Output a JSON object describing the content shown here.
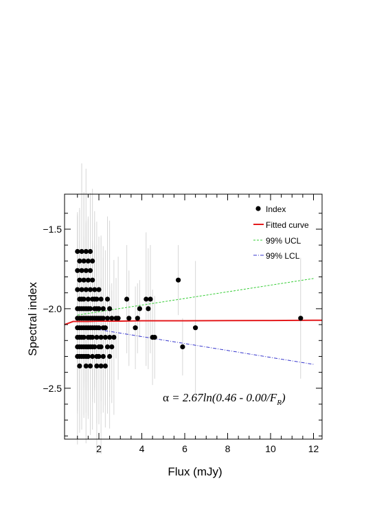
{
  "chart_data": {
    "type": "scatter",
    "xlabel": "Flux (mJy)",
    "ylabel": "Spectral index",
    "xlim": [
      0.4,
      12.4
    ],
    "ylim": [
      -2.82,
      -1.28
    ],
    "xticks": [
      2,
      4,
      6,
      8,
      10,
      12
    ],
    "yticks": [
      -2.5,
      -2.0,
      -1.5
    ],
    "xtick_labels": [
      "2",
      "4",
      "6",
      "8",
      "10",
      "12"
    ],
    "ytick_labels": [
      "−2.5",
      "−2.0",
      "−1.5"
    ],
    "grid": false,
    "legend": {
      "position": "top-right",
      "entries": [
        {
          "label": "Index",
          "marker": "dot",
          "color": "#000000"
        },
        {
          "label": "Fitted curve",
          "style": "solid",
          "color": "#e41a1c"
        },
        {
          "label": "99% UCL",
          "style": "dashed",
          "color": "#33cc33"
        },
        {
          "label": "99% LCL",
          "style": "dash-dot",
          "color": "#3333cc"
        }
      ]
    },
    "annotation": {
      "alpha": "α",
      "formula_main": " = 2.67ln(0.46 - 0.00/F",
      "formula_sub": "R",
      "formula_close": ")"
    },
    "index_points": [
      [
        1.0,
        -1.64
      ],
      [
        1.0,
        -1.76
      ],
      [
        1.0,
        -1.88
      ],
      [
        1.0,
        -2.0
      ],
      [
        1.0,
        -2.06
      ],
      [
        1.0,
        -2.12
      ],
      [
        1.0,
        -2.18
      ],
      [
        1.0,
        -2.24
      ],
      [
        1.0,
        -2.3
      ],
      [
        1.1,
        -1.7
      ],
      [
        1.1,
        -1.82
      ],
      [
        1.1,
        -1.94
      ],
      [
        1.1,
        -2.0
      ],
      [
        1.1,
        -2.06
      ],
      [
        1.1,
        -2.12
      ],
      [
        1.1,
        -2.18
      ],
      [
        1.1,
        -2.24
      ],
      [
        1.1,
        -2.3
      ],
      [
        1.1,
        -2.36
      ],
      [
        1.2,
        -1.64
      ],
      [
        1.2,
        -1.76
      ],
      [
        1.2,
        -1.88
      ],
      [
        1.2,
        -1.94
      ],
      [
        1.2,
        -2.0
      ],
      [
        1.2,
        -2.06
      ],
      [
        1.2,
        -2.12
      ],
      [
        1.2,
        -2.18
      ],
      [
        1.2,
        -2.24
      ],
      [
        1.2,
        -2.3
      ],
      [
        1.3,
        -1.7
      ],
      [
        1.3,
        -1.82
      ],
      [
        1.3,
        -1.94
      ],
      [
        1.3,
        -2.0
      ],
      [
        1.3,
        -2.06
      ],
      [
        1.3,
        -2.12
      ],
      [
        1.3,
        -2.18
      ],
      [
        1.3,
        -2.24
      ],
      [
        1.3,
        -2.3
      ],
      [
        1.4,
        -1.64
      ],
      [
        1.4,
        -1.76
      ],
      [
        1.4,
        -1.88
      ],
      [
        1.4,
        -2.0
      ],
      [
        1.4,
        -2.06
      ],
      [
        1.4,
        -2.12
      ],
      [
        1.4,
        -2.24
      ],
      [
        1.4,
        -2.3
      ],
      [
        1.4,
        -2.36
      ],
      [
        1.5,
        -1.7
      ],
      [
        1.5,
        -1.82
      ],
      [
        1.5,
        -1.94
      ],
      [
        1.5,
        -2.0
      ],
      [
        1.5,
        -2.06
      ],
      [
        1.5,
        -2.12
      ],
      [
        1.5,
        -2.18
      ],
      [
        1.5,
        -2.24
      ],
      [
        1.5,
        -2.3
      ],
      [
        1.6,
        -1.64
      ],
      [
        1.6,
        -1.76
      ],
      [
        1.6,
        -1.88
      ],
      [
        1.6,
        -2.0
      ],
      [
        1.6,
        -2.06
      ],
      [
        1.6,
        -2.12
      ],
      [
        1.6,
        -2.18
      ],
      [
        1.6,
        -2.24
      ],
      [
        1.6,
        -2.36
      ],
      [
        1.7,
        -1.7
      ],
      [
        1.7,
        -1.82
      ],
      [
        1.7,
        -1.94
      ],
      [
        1.7,
        -2.06
      ],
      [
        1.7,
        -2.12
      ],
      [
        1.7,
        -2.18
      ],
      [
        1.7,
        -2.24
      ],
      [
        1.7,
        -2.3
      ],
      [
        1.8,
        -1.88
      ],
      [
        1.8,
        -1.94
      ],
      [
        1.8,
        -2.0
      ],
      [
        1.8,
        -2.06
      ],
      [
        1.8,
        -2.12
      ],
      [
        1.8,
        -2.24
      ],
      [
        1.9,
        -1.94
      ],
      [
        1.9,
        -2.0
      ],
      [
        1.9,
        -2.06
      ],
      [
        1.9,
        -2.12
      ],
      [
        1.9,
        -2.18
      ],
      [
        1.9,
        -2.3
      ],
      [
        1.9,
        -2.36
      ],
      [
        2.0,
        -1.88
      ],
      [
        2.0,
        -2.0
      ],
      [
        2.0,
        -2.06
      ],
      [
        2.0,
        -2.12
      ],
      [
        2.0,
        -2.24
      ],
      [
        2.0,
        -2.3
      ],
      [
        2.1,
        -1.94
      ],
      [
        2.1,
        -2.06
      ],
      [
        2.1,
        -2.18
      ],
      [
        2.1,
        -2.24
      ],
      [
        2.1,
        -2.36
      ],
      [
        2.2,
        -2.0
      ],
      [
        2.2,
        -2.06
      ],
      [
        2.2,
        -2.12
      ],
      [
        2.2,
        -2.3
      ],
      [
        2.3,
        -2.12
      ],
      [
        2.3,
        -2.18
      ],
      [
        2.3,
        -2.36
      ],
      [
        2.4,
        -1.94
      ],
      [
        2.4,
        -2.06
      ],
      [
        2.4,
        -2.24
      ],
      [
        2.5,
        -2.0
      ],
      [
        2.5,
        -2.18
      ],
      [
        2.5,
        -2.3
      ],
      [
        2.6,
        -2.06
      ],
      [
        2.6,
        -2.24
      ],
      [
        2.7,
        -2.18
      ],
      [
        2.8,
        -2.06
      ],
      [
        2.9,
        -2.06
      ],
      [
        3.3,
        -1.94
      ],
      [
        3.4,
        -2.06
      ],
      [
        3.7,
        -2.12
      ],
      [
        3.8,
        -2.06
      ],
      [
        3.9,
        -2.0
      ],
      [
        4.2,
        -1.94
      ],
      [
        4.3,
        -2.0
      ],
      [
        4.4,
        -1.94
      ],
      [
        4.5,
        -2.18
      ],
      [
        4.6,
        -2.18
      ],
      [
        5.7,
        -1.82
      ],
      [
        5.9,
        -2.24
      ],
      [
        6.5,
        -2.12
      ],
      [
        11.4,
        -2.06
      ]
    ],
    "fitted_curve": {
      "x": [
        0.4,
        0.6,
        0.8,
        1.0,
        1.5,
        2.0,
        3.0,
        4.0,
        6.0,
        8.0,
        10.0,
        12.0,
        12.4
      ],
      "y": [
        -2.1,
        -2.09,
        -2.08,
        -2.08,
        -2.08,
        -2.078,
        -2.078,
        -2.076,
        -2.076,
        -2.075,
        -2.074,
        -2.073,
        -2.073
      ]
    },
    "ucl_99": {
      "x": [
        1.0,
        12.0
      ],
      "y": [
        -2.04,
        -1.81
      ]
    },
    "lcl_99": {
      "x": [
        1.0,
        12.0
      ],
      "y": [
        -2.11,
        -2.35
      ]
    }
  }
}
